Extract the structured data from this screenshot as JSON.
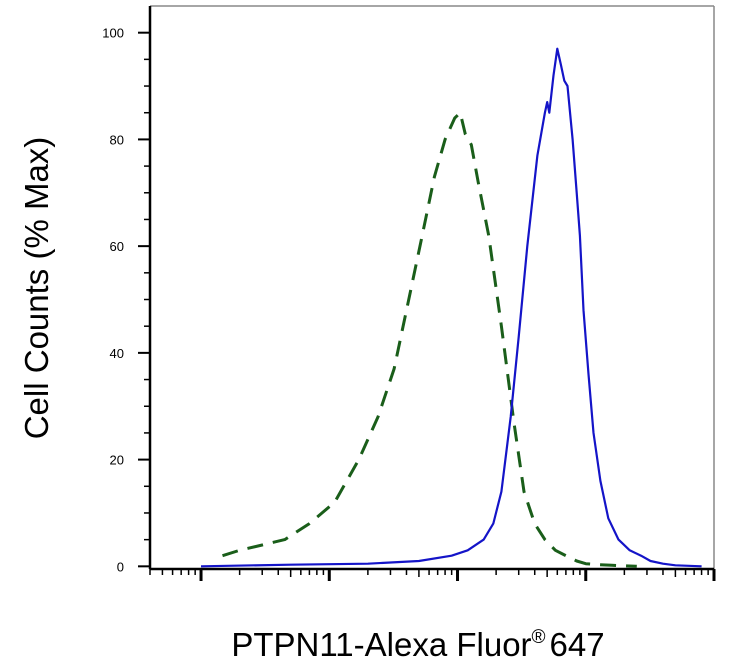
{
  "chart_data": {
    "type": "line",
    "title": "",
    "xlabel": "PTPN11-Alexa Fluor",
    "xlabel_superscript": "®",
    "xlabel_suffix": "647",
    "ylabel": "Cell Counts (% Max)",
    "x_scale": "log",
    "xlim": [
      0.4,
      10000
    ],
    "ylim": [
      -0.5,
      105
    ],
    "y_ticks": [
      "0",
      "20",
      "40",
      "60",
      "80",
      "100"
    ],
    "grid": false,
    "legend": "none",
    "colors": {
      "control": "#1a5e1a",
      "stained": "#1414c8",
      "axis": "#000000",
      "frame": "#888888"
    },
    "series": [
      {
        "style": "dashed",
        "color": "#1a5e1a",
        "x": [
          1.47,
          2.0,
          3.0,
          4.5,
          7.0,
          11.0,
          17.0,
          24.0,
          32.0,
          40.0,
          52.0,
          66.0,
          80.0,
          95.0,
          105.0,
          115.0,
          128.0,
          145.0,
          175.0,
          220.0,
          275.0,
          330.0,
          400.0,
          480.0,
          580.0,
          700.0,
          850.0,
          1000.0,
          1250.0,
          1600.0,
          2000.0,
          2500.0
        ],
        "y": [
          2,
          3,
          4,
          5,
          8,
          12,
          20,
          28,
          37,
          48,
          61,
          73,
          80,
          84,
          85,
          81,
          79,
          72,
          62,
          45,
          27,
          14,
          8,
          5,
          3,
          2,
          1,
          0.5,
          0.3,
          0.2,
          0.1,
          0
        ]
      },
      {
        "style": "solid",
        "color": "#1414c8",
        "x": [
          1.0,
          5.0,
          20.0,
          50.0,
          90.0,
          120.0,
          160.0,
          190.0,
          220.0,
          260.0,
          300.0,
          350.0,
          420.0,
          480.0,
          500.0,
          520.0,
          560.0,
          600.0,
          640.0,
          680.0,
          720.0,
          790.0,
          850.0,
          900.0,
          960.0,
          1050.0,
          1150.0,
          1300.0,
          1500.0,
          1800.0,
          2200.0,
          2700.0,
          3200.0,
          4000.0,
          5000.0,
          8000.0
        ],
        "y": [
          0,
          0.3,
          0.5,
          1,
          2,
          3,
          5,
          8,
          14,
          28,
          43,
          60,
          77,
          85,
          87,
          85,
          92,
          97,
          94,
          91,
          90,
          80,
          70,
          62,
          48,
          36,
          25,
          16,
          9,
          5,
          3,
          2,
          1,
          0.5,
          0.2,
          0
        ]
      }
    ]
  }
}
